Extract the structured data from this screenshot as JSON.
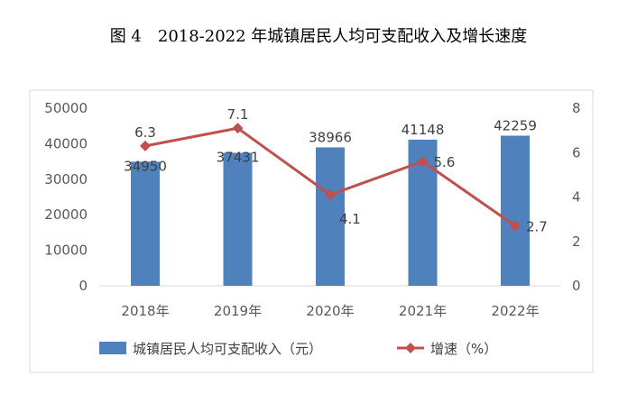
{
  "chart_data": {
    "type": "bar",
    "title": "图 4　2018-2022 年城镇居民人均可支配收入及增长速度",
    "categories": [
      "2018年",
      "2019年",
      "2020年",
      "2021年",
      "2022年"
    ],
    "series": [
      {
        "name": "城镇居民人均可支配收入（元）",
        "type": "bar",
        "axis": "left",
        "color": "#4f81bd",
        "values": [
          34950,
          37431,
          38966,
          41148,
          42259
        ]
      },
      {
        "name": "增速（%）",
        "type": "line",
        "axis": "right",
        "color": "#c0504d",
        "values": [
          6.3,
          7.1,
          4.1,
          5.6,
          2.7
        ]
      }
    ],
    "ylim": [
      0,
      50000
    ],
    "yticks": [
      0,
      10000,
      20000,
      30000,
      40000,
      50000
    ],
    "y2lim": [
      0,
      8
    ],
    "y2ticks": [
      0,
      2,
      4,
      6,
      8
    ],
    "grid": false,
    "legend": "bottom"
  }
}
